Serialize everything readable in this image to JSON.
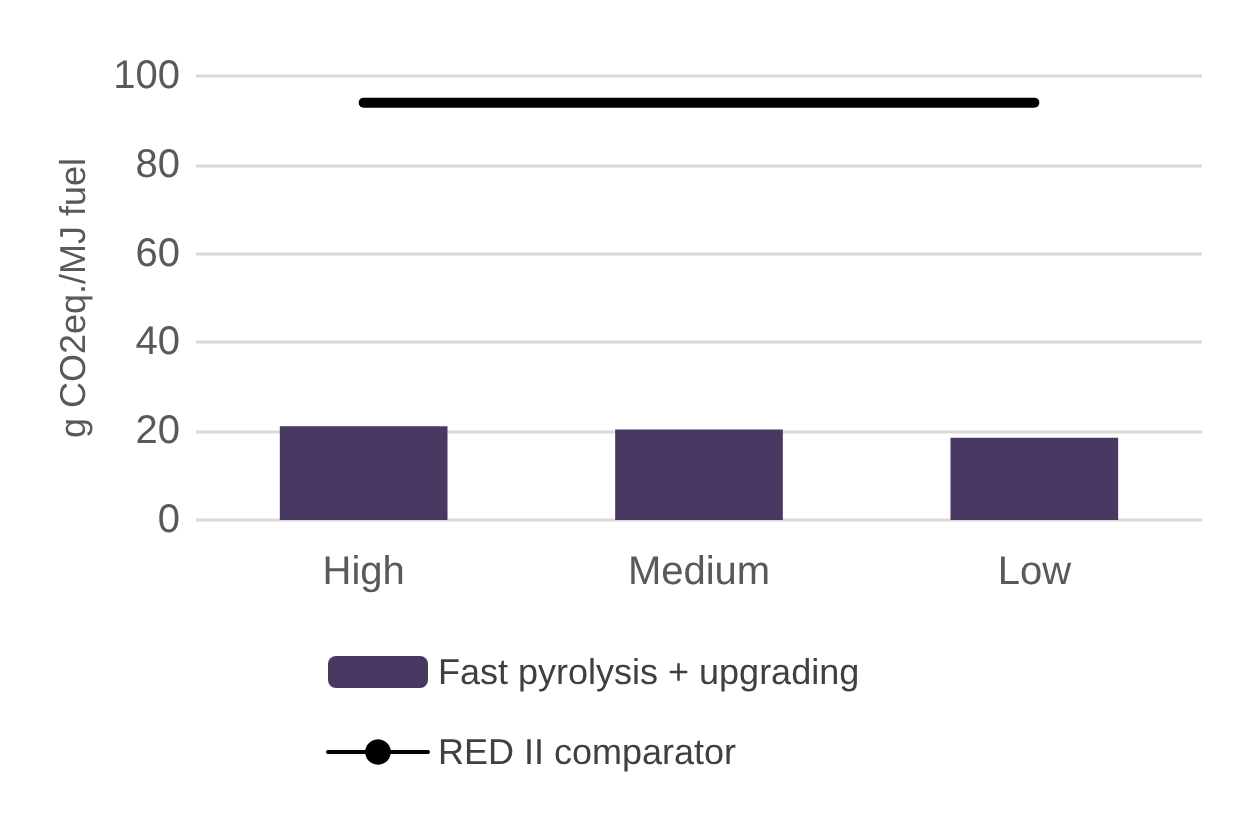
{
  "chart_data": {
    "type": "bar",
    "ylabel": "g CO2eq./MJ fuel",
    "categories": [
      "High",
      "Medium",
      "Low"
    ],
    "series": [
      {
        "name": "Fast pyrolysis + upgrading",
        "color": "#483862",
        "values": [
          21.1,
          20.4,
          18.5
        ]
      },
      {
        "name": "RED II comparator",
        "type": "line",
        "color": "#000000",
        "values": [
          94,
          94,
          94
        ]
      }
    ],
    "ylim": [
      0,
      100
    ],
    "yticks": [
      0,
      20,
      40,
      60,
      80,
      100
    ],
    "grid": "y",
    "legend": "bottom",
    "marker": "none"
  }
}
